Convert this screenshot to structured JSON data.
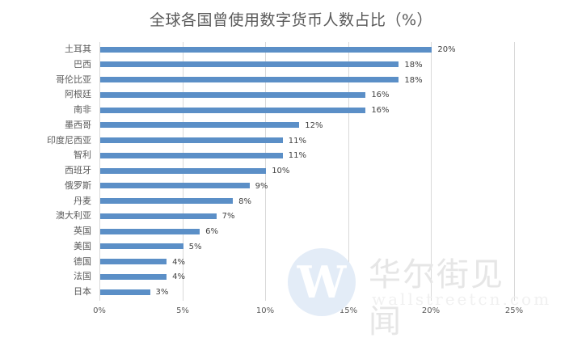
{
  "chart_data": {
    "type": "bar",
    "orientation": "horizontal",
    "title": "全球各国曾使用数字货币人数占比（%）",
    "xlabel": "",
    "ylabel": "",
    "categories": [
      "土耳其",
      "巴西",
      "哥伦比亚",
      "阿根廷",
      "南非",
      "墨西哥",
      "印度尼西亚",
      "智利",
      "西班牙",
      "俄罗斯",
      "丹麦",
      "澳大利亚",
      "英国",
      "美国",
      "德国",
      "法国",
      "日本"
    ],
    "values": [
      20,
      18,
      18,
      16,
      16,
      12,
      11,
      11,
      10,
      9,
      8,
      7,
      6,
      5,
      4,
      4,
      3
    ],
    "value_labels": [
      "20%",
      "18%",
      "18%",
      "16%",
      "16%",
      "12%",
      "11%",
      "11%",
      "10%",
      "9%",
      "8%",
      "7%",
      "6%",
      "5%",
      "4%",
      "4%",
      "3%"
    ],
    "xlim": [
      0,
      25
    ],
    "xticks": [
      0,
      5,
      10,
      15,
      20,
      25
    ],
    "xtick_labels": [
      "0%",
      "5%",
      "10%",
      "15%",
      "20%",
      "25%"
    ],
    "grid": "vertical",
    "legend": "none",
    "bar_color": "#5b8fc7"
  },
  "watermark": {
    "logo_letter": "W",
    "text": "华尔街见闻",
    "url": "wallstreetcn.com"
  }
}
